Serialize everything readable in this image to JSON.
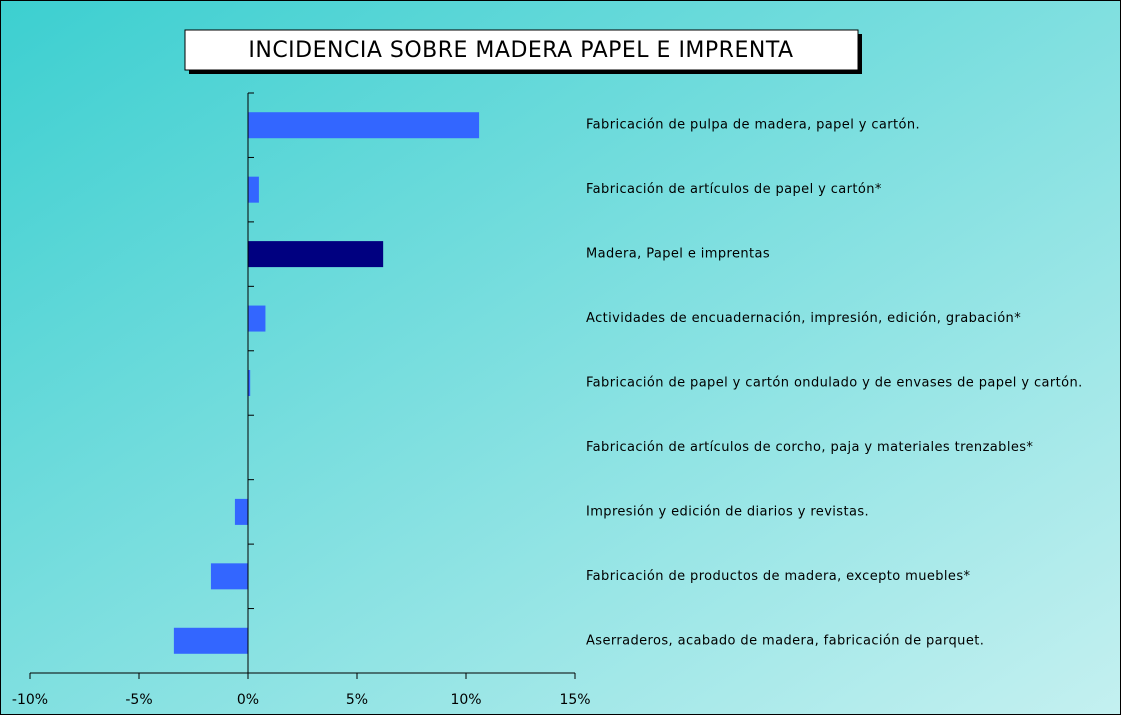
{
  "chart_data": {
    "type": "hbar",
    "title": "INCIDENCIA SOBRE MADERA PAPEL E IMPRENTA",
    "categories": [
      "Fabricación de pulpa de madera, papel y cartón.",
      "Fabricación de artículos de papel y cartón*",
      "Madera, Papel e imprentas",
      "Actividades de encuadernación, impresión, edición, grabación*",
      "Fabricación de papel y cartón ondulado y de envases de papel y cartón.",
      "Fabricación de artículos de corcho, paja y materiales trenzables*",
      "Impresión y edición de diarios y revistas.",
      "Fabricación de productos de madera, excepto muebles*",
      "Aserraderos, acabado de madera, fabricación de parquet."
    ],
    "values": [
      10.6,
      0.5,
      6.2,
      0.8,
      0.1,
      0,
      -0.6,
      -1.7,
      -3.4
    ],
    "colors": [
      "#3366ff",
      "#3366ff",
      "#000080",
      "#3366ff",
      "#3366ff",
      "#3366ff",
      "#3366ff",
      "#3366ff",
      "#3366ff"
    ],
    "xlim": [
      -10,
      15
    ],
    "xticks": [
      {
        "value": -10,
        "label": "-10%"
      },
      {
        "value": -5,
        "label": "-5%"
      },
      {
        "value": 0,
        "label": "0%"
      },
      {
        "value": 5,
        "label": "5%"
      },
      {
        "value": 10,
        "label": "10%"
      },
      {
        "value": 15,
        "label": "15%"
      }
    ]
  }
}
